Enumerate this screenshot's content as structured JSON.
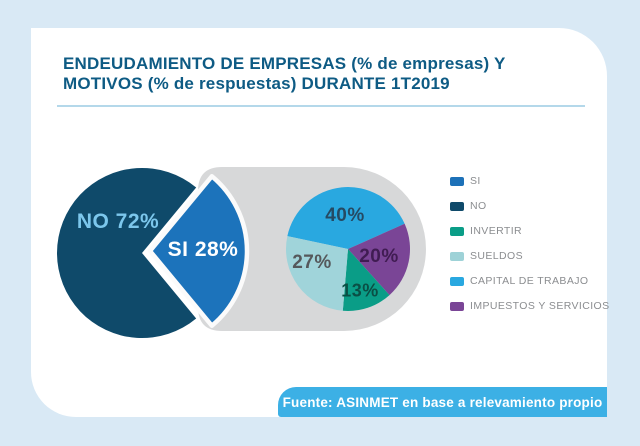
{
  "colors": {
    "page_bg": "#d9e9f5",
    "card_bg": "#ffffff",
    "title": "#0e5b84",
    "divider": "#b4d8ea",
    "connector_gray": "#d7d8d9",
    "wedge_outline": "#fbfbfb",
    "legend_text": "#8b8d90"
  },
  "header": {
    "title": "ENDEUDAMIENTO DE EMPRESAS (% de empresas) Y\nMOTIVOS (% de respuestas) DURANTE 1T2019",
    "title_color": "#0e5b84"
  },
  "legend": {
    "items": [
      {
        "label": "SI",
        "color": "#1d71b8"
      },
      {
        "label": "NO",
        "color": "#0f4a6a"
      },
      {
        "label": "INVERTIR",
        "color": "#0a9d87"
      },
      {
        "label": "SUELDOS",
        "color": "#9ed2d7"
      },
      {
        "label": "CAPITAL DE TRABAJO",
        "color": "#29a8e0"
      },
      {
        "label": "IMPUESTOS Y SERVICIOS",
        "color": "#7a4596"
      }
    ]
  },
  "source": {
    "label": "Fuente: ASINMET en base a relevamiento propio",
    "bg": "#3cb0e5"
  },
  "chart_data": {
    "type": "pie",
    "title": "ENDEUDAMIENTO DE EMPRESAS (% de empresas) Y MOTIVOS (% de respuestas) DURANTE 1T2019",
    "legend_position": "right",
    "charts": [
      {
        "name": "endeudamiento",
        "unit": "% de empresas",
        "slices": [
          {
            "label": "NO",
            "value": 72,
            "color": "#0f4a6a",
            "text_label": "NO 72%",
            "text_color": "#7cc7ec",
            "exploded": false
          },
          {
            "label": "SI",
            "value": 28,
            "color": "#1c73bb",
            "text_label": "SI 28%",
            "text_color": "#ffffff",
            "exploded": true
          }
        ]
      },
      {
        "name": "motivos",
        "unit": "% de respuestas",
        "slices": [
          {
            "label": "CAPITAL DE TRABAJO",
            "value": 40,
            "color": "#29a8e0",
            "text_label": "40%",
            "text_color": "#254a63"
          },
          {
            "label": "IMPUESTOS Y SERVICIOS",
            "value": 20,
            "color": "#7a4596",
            "text_label": "20%",
            "text_color": "#401c52"
          },
          {
            "label": "INVERTIR",
            "value": 13,
            "color": "#0a9d87",
            "text_label": "13%",
            "text_color": "#0a4f45"
          },
          {
            "label": "SUELDOS",
            "value": 27,
            "color": "#a0d4da",
            "text_label": "27%",
            "text_color": "#55585b"
          }
        ]
      }
    ]
  }
}
